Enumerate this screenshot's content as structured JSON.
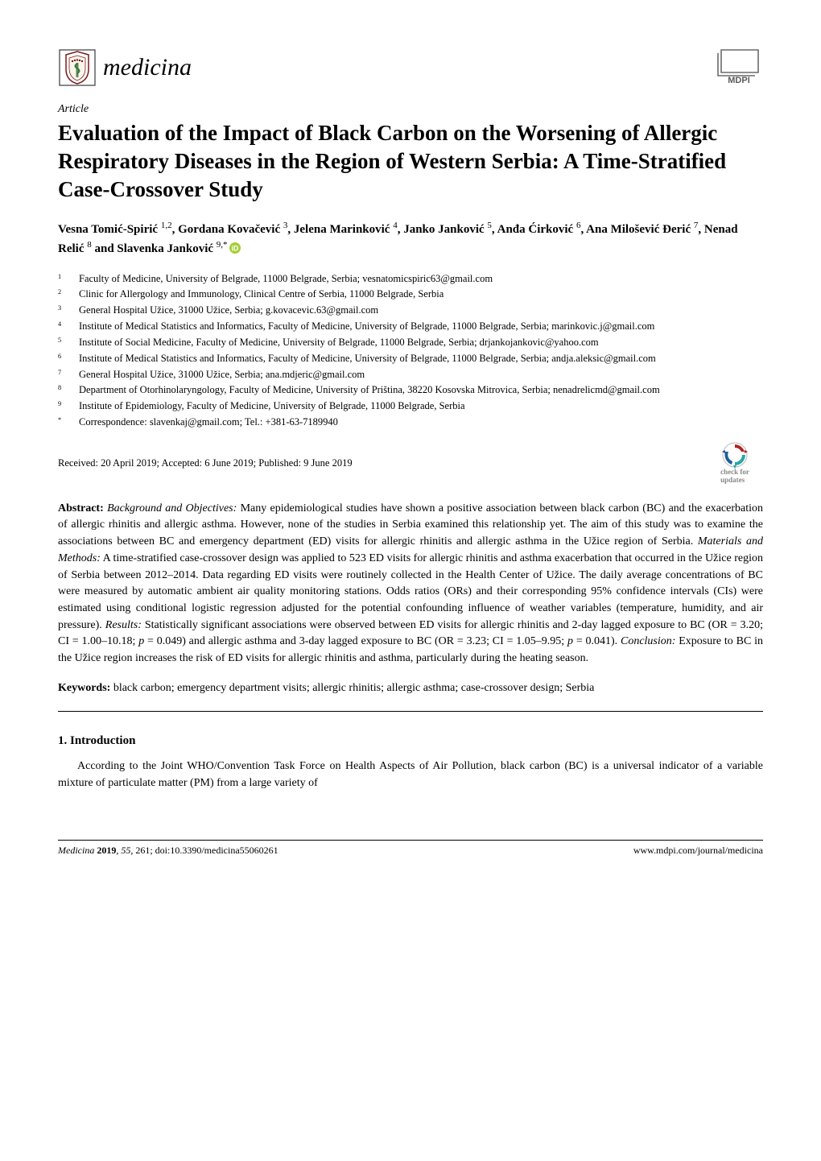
{
  "header": {
    "journal_name": "medicina",
    "publisher_name": "MDPI",
    "logo_colors": {
      "shield_fill": "#ffffff",
      "shield_border": "#7a1b1b",
      "snake": "#3a7a3a"
    },
    "mdpi_colors": {
      "frame": "#5a5a5a",
      "text": "#5a5a5a"
    }
  },
  "article_label": "Article",
  "title": "Evaluation of the Impact of Black Carbon on the Worsening of Allergic Respiratory Diseases in the Region of Western Serbia: A Time-Stratified Case-Crossover Study",
  "authors_html_parts": [
    {
      "name": "Vesna Tomić-Spirić",
      "sup": "1,2"
    },
    {
      "name": "Gordana Kovačević",
      "sup": "3"
    },
    {
      "name": "Jelena Marinković",
      "sup": "4"
    },
    {
      "name": "Janko Janković",
      "sup": "5"
    },
    {
      "name": "Anđa Ćirković",
      "sup": "6"
    },
    {
      "name": "Ana Milošević Đerić",
      "sup": "7"
    },
    {
      "name": "Nenad Relić",
      "sup": "8"
    },
    {
      "name": "Slavenka Janković",
      "sup": "9,*",
      "orcid": true,
      "last_connector": " and "
    }
  ],
  "affiliations": [
    {
      "num": "1",
      "text": "Faculty of Medicine, University of Belgrade, 11000 Belgrade, Serbia; vesnatomicspiric63@gmail.com"
    },
    {
      "num": "2",
      "text": "Clinic for Allergology and Immunology, Clinical Centre of Serbia, 11000 Belgrade, Serbia"
    },
    {
      "num": "3",
      "text": "General Hospital Užice, 31000 Užice, Serbia; g.kovacevic.63@gmail.com"
    },
    {
      "num": "4",
      "text": "Institute of Medical Statistics and Informatics, Faculty of Medicine, University of Belgrade, 11000 Belgrade, Serbia; marinkovic.j@gmail.com"
    },
    {
      "num": "5",
      "text": "Institute of Social Medicine, Faculty of Medicine, University of Belgrade, 11000 Belgrade, Serbia; drjankojankovic@yahoo.com"
    },
    {
      "num": "6",
      "text": "Institute of Medical Statistics and Informatics, Faculty of Medicine, University of Belgrade, 11000 Belgrade, Serbia; andja.aleksic@gmail.com"
    },
    {
      "num": "7",
      "text": "General Hospital Užice, 31000 Užice, Serbia; ana.mdjeric@gmail.com"
    },
    {
      "num": "8",
      "text": "Department of Otorhinolaryngology, Faculty of Medicine, University of Priština, 38220 Kosovska Mitrovica, Serbia; nenadrelicmd@gmail.com"
    },
    {
      "num": "9",
      "text": "Institute of Epidemiology, Faculty of Medicine, University of Belgrade, 11000 Belgrade, Serbia"
    },
    {
      "num": "*",
      "text": "Correspondence: slavenkaj@gmail.com; Tel.: +381-63-7189940"
    }
  ],
  "dates_line": "Received: 20 April 2019; Accepted: 6 June 2019; Published: 9 June 2019",
  "check_updates_label_1": "check for",
  "check_updates_label_2": "updates",
  "abstract": {
    "heading": "Abstract:",
    "body_segments": [
      {
        "italic_label": "Background and Objectives:",
        "text": " Many epidemiological studies have shown a positive association between black carbon (BC) and the exacerbation of allergic rhinitis and allergic asthma. However, none of the studies in Serbia examined this relationship yet. The aim of this study was to examine the associations between BC and emergency department (ED) visits for allergic rhinitis and allergic asthma in the Užice region of Serbia. "
      },
      {
        "italic_label": "Materials and Methods:",
        "text": " A time-stratified case-crossover design was applied to 523 ED visits for allergic rhinitis and asthma exacerbation that occurred in the Užice region of Serbia between 2012–2014. Data regarding ED visits were routinely collected in the Health Center of Užice. The daily average concentrations of BC were measured by automatic ambient air quality monitoring stations. Odds ratios (ORs) and their corresponding 95% confidence intervals (CIs) were estimated using conditional logistic regression adjusted for the potential confounding influence of weather variables (temperature, humidity, and air pressure). "
      },
      {
        "italic_label": "Results:",
        "text": " Statistically significant associations were observed between ED visits for allergic rhinitis and 2-day lagged exposure to BC (OR = 3.20; CI = 1.00–10.18; p = 0.049) and allergic asthma and 3-day lagged exposure to BC (OR = 3.23; CI = 1.05–9.95; p = 0.041). "
      },
      {
        "italic_label": "Conclusion:",
        "text": " Exposure to BC in the Užice region increases the risk of ED visits for allergic rhinitis and asthma, particularly during the heating season."
      }
    ]
  },
  "keywords": {
    "heading": "Keywords:",
    "text": " black carbon; emergency department visits; allergic rhinitis; allergic asthma; case-crossover design; Serbia"
  },
  "section1": {
    "heading": "1. Introduction",
    "para": "According to the Joint WHO/Convention Task Force on Health Aspects of Air Pollution, black carbon (BC) is a universal indicator of a variable mixture of particulate matter (PM) from a large variety of"
  },
  "footer": {
    "left_italic_journal": "Medicina",
    "left_rest": " 2019, 55, 261; doi:10.3390/medicina55060261",
    "left_year_bold": "2019",
    "right": "www.mdpi.com/journal/medicina"
  },
  "colors": {
    "orcid_green": "#a6ce39",
    "check_updates_red": "#b22222",
    "check_updates_teal": "#2aa6a6",
    "check_updates_blue": "#1d5f9c",
    "check_updates_text": "#888888"
  }
}
